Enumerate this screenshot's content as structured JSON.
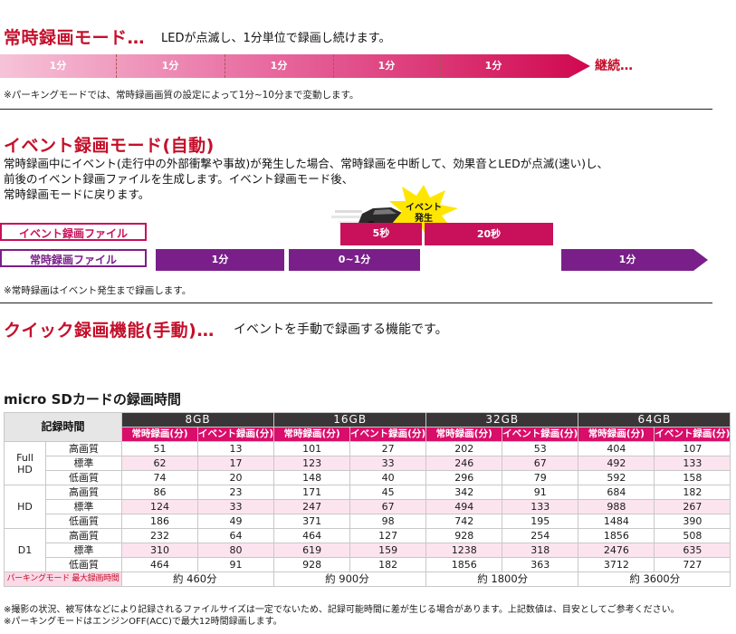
{
  "section1": {
    "title": "常時録画モード…",
    "desc": "LEDが点滅し、1分単位で録画し続けます。",
    "segments": [
      "1分",
      "1分",
      "1分",
      "1分",
      "1分"
    ],
    "continue_label": "継続…",
    "note": "※パーキングモードでは、常時録画画質の設定によって1分~10分まで変動します。"
  },
  "section2": {
    "title": "イベント録画モード(自動)",
    "desc_lines": [
      "常時録画中にイベント(走行中の外部衝撃や事故)が発生した場合、常時録画を中断して、効果音とLEDが点滅(速い)し、",
      "前後のイベント録画ファイルを生成します。イベント録画モード後、",
      "常時録画モードに戻ります。"
    ],
    "event_file_label": "イベント録画ファイル",
    "normal_file_label": "常時録画ファイル",
    "badge_line1": "イベント",
    "badge_line2": "発生",
    "event_bars": [
      "5秒",
      "20秒"
    ],
    "normal_bars": [
      "1分",
      "0~1分",
      "1分"
    ],
    "note": "※常時録画はイベント発生まで録画します。"
  },
  "section3": {
    "title": "クイック録画機能(手動)…",
    "desc": "イベントを手動で録画する機能です。"
  },
  "table": {
    "title": "micro SDカードの録画時間",
    "corner_label": "記録時間",
    "capacities": [
      "8GB",
      "16GB",
      "32GB",
      "64GB"
    ],
    "sub_normal": "常時録画(分)",
    "sub_event": "イベント録画(分)",
    "groups": [
      {
        "name_line1": "Full",
        "name_line2": "HD",
        "rows": [
          {
            "quality": "高画質",
            "values": [
              "51",
              "13",
              "101",
              "27",
              "202",
              "53",
              "404",
              "107"
            ]
          },
          {
            "quality": "標準",
            "values": [
              "62",
              "17",
              "123",
              "33",
              "246",
              "67",
              "492",
              "133"
            ]
          },
          {
            "quality": "低画質",
            "values": [
              "74",
              "20",
              "148",
              "40",
              "296",
              "79",
              "592",
              "158"
            ]
          }
        ]
      },
      {
        "name_line1": "HD",
        "name_line2": "",
        "rows": [
          {
            "quality": "高画質",
            "values": [
              "86",
              "23",
              "171",
              "45",
              "342",
              "91",
              "684",
              "182"
            ]
          },
          {
            "quality": "標準",
            "values": [
              "124",
              "33",
              "247",
              "67",
              "494",
              "133",
              "988",
              "267"
            ]
          },
          {
            "quality": "低画質",
            "values": [
              "186",
              "49",
              "371",
              "98",
              "742",
              "195",
              "1484",
              "390"
            ]
          }
        ]
      },
      {
        "name_line1": "D1",
        "name_line2": "",
        "rows": [
          {
            "quality": "高画質",
            "values": [
              "232",
              "64",
              "464",
              "127",
              "928",
              "254",
              "1856",
              "508"
            ]
          },
          {
            "quality": "標準",
            "values": [
              "310",
              "80",
              "619",
              "159",
              "1238",
              "318",
              "2476",
              "635"
            ]
          },
          {
            "quality": "低画質",
            "values": [
              "464",
              "91",
              "928",
              "182",
              "1856",
              "363",
              "3712",
              "727"
            ]
          }
        ]
      }
    ],
    "parking_label": "パーキングモード 最大録画時間",
    "parking_values": [
      "約 460分",
      "約 900分",
      "約 1800分",
      "約 3600分"
    ],
    "footnotes": [
      "※撮影の状況、被写体などにより記録されるファイルサイズは一定でないため、記録可能時間に差が生じる場合があります。上記数値は、目安としてご参考ください。",
      "※パーキングモードはエンジンOFF(ACC)で最大12時間録画します。"
    ]
  },
  "colors": {
    "accent_red": "#c4102b",
    "event_bar": "#c8115a",
    "normal_bar": "#7a1f8a",
    "table_header": "#3a3536",
    "table_subheader": "#d90d6a",
    "row_tint": "#fce4ef"
  },
  "icons": [
    "car-icon",
    "burst-icon"
  ]
}
